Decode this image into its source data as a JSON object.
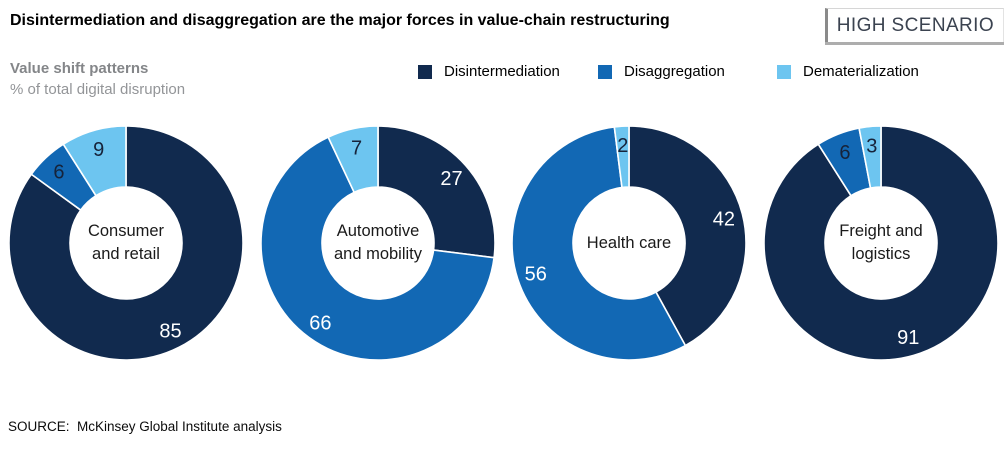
{
  "header": {
    "title": "Disintermediation and disaggregation are the major forces in value-chain restructuring",
    "badge": "HIGH SCENARIO"
  },
  "subtitle": {
    "line1": "Value shift patterns",
    "line2": "% of total digital disruption"
  },
  "legend": [
    {
      "label": "Disintermediation"
    },
    {
      "label": "Disaggregation"
    },
    {
      "label": "Dematerialization"
    }
  ],
  "source": "SOURCE:  McKinsey Global Institute analysis",
  "chart_data": {
    "type": "pie",
    "subtype": "donut",
    "title": "Value shift patterns",
    "unit": "% of total digital disruption",
    "legend_position": "top",
    "series_names": [
      "Disintermediation",
      "Disaggregation",
      "Dematerialization"
    ],
    "colors": [
      "#112a4e",
      "#1268b4",
      "#6dc5f0"
    ],
    "charts": [
      {
        "label": "Consumer and retail",
        "label_lines": [
          "Consumer",
          "and retail"
        ],
        "values": [
          85,
          6,
          9
        ]
      },
      {
        "label": "Automotive and mobility",
        "label_lines": [
          "Automotive",
          "and mobility"
        ],
        "values": [
          27,
          66,
          7
        ]
      },
      {
        "label": "Health care",
        "label_lines": [
          "Health care"
        ],
        "values": [
          42,
          56,
          2
        ]
      },
      {
        "label": "Freight and logistics",
        "label_lines": [
          "Freight and",
          "logistics"
        ],
        "values": [
          91,
          6,
          3
        ]
      }
    ]
  }
}
